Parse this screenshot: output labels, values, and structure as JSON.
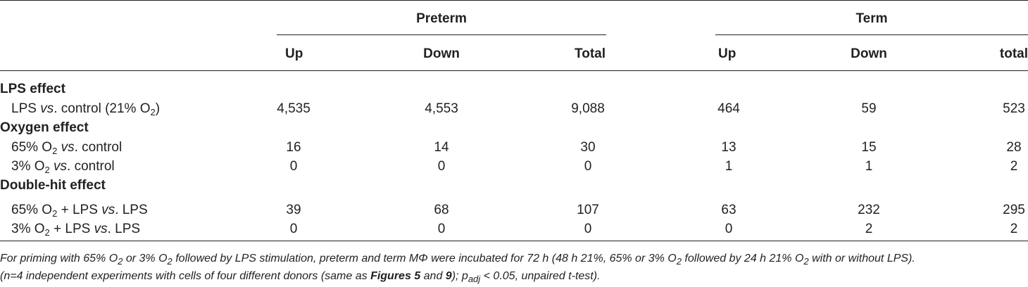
{
  "groups": {
    "preterm": "Preterm",
    "term": "Term"
  },
  "columns": {
    "preterm_up": "Up",
    "preterm_down": "Down",
    "preterm_total": "Total",
    "term_up": "Up",
    "term_down": "Down",
    "term_total": "total"
  },
  "sections": {
    "lps": "LPS effect",
    "oxygen": "Oxygen effect",
    "double": "Double-hit effect"
  },
  "rows": {
    "lps_vs_control": {
      "a": "LPS ",
      "vs": "vs",
      "b": ". control (21% O",
      "sub": "2",
      "c": ")",
      "values": [
        "4,535",
        "4,553",
        "9,088",
        "464",
        "59",
        "523"
      ]
    },
    "o65_vs_control": {
      "a": "65% O",
      "sub": "2",
      "b": " ",
      "vs": "vs",
      "c": ". control",
      "values": [
        "16",
        "14",
        "30",
        "13",
        "15",
        "28"
      ]
    },
    "o3_vs_control": {
      "a": "3% O",
      "sub": "2",
      "b": " ",
      "vs": "vs",
      "c": ". control",
      "values": [
        "0",
        "0",
        "0",
        "1",
        "1",
        "2"
      ]
    },
    "o65_lps_vs_lps": {
      "a": "65% O",
      "sub": "2",
      "b": " + LPS ",
      "vs": "vs",
      "c": ". LPS",
      "values": [
        "39",
        "68",
        "107",
        "63",
        "232",
        "295"
      ]
    },
    "o3_lps_vs_lps": {
      "a": "3% O",
      "sub": "2",
      "b": " + LPS ",
      "vs": "vs",
      "c": ". LPS",
      "values": [
        "0",
        "0",
        "0",
        "0",
        "2",
        "2"
      ]
    }
  },
  "footnote": {
    "p1": "For priming with 65% O",
    "s1": "2",
    "p2": " or 3% O",
    "s2": "2",
    "p3": " followed by LPS stimulation, preterm and term MΦ were incubated for 72 h (48 h 21%, 65% or 3% O",
    "s3": "2",
    "p4": " followed by 24 h 21% O",
    "s4": "2",
    "p5": " with or without LPS).",
    "p6": "(n=4 independent experiments with cells of four different donors (same as ",
    "fig5": "Figures 5",
    "p7": " and ",
    "fig9": "9",
    "p8": "); p",
    "s5": "adj",
    "p9": " < 0.05, unpaired t-test)."
  }
}
